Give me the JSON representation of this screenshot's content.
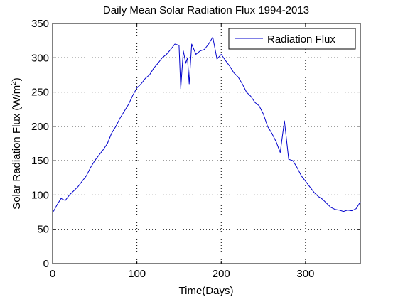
{
  "chart_data": {
    "type": "line",
    "title": "Daily Mean Solar Radiation Flux 1994-2013",
    "xlabel": "Time(Days)",
    "ylabel_main": "Solar Radiation Flux (W/m",
    "ylabel_sup": "2",
    "ylabel_close": ")",
    "xlim": [
      0,
      365
    ],
    "ylim": [
      0,
      350
    ],
    "xticks": [
      0,
      100,
      200,
      300
    ],
    "yticks": [
      0,
      50,
      100,
      150,
      200,
      250,
      300,
      350
    ],
    "grid": true,
    "legend_position": "top-right",
    "series": [
      {
        "name": "Radiation Flux",
        "color": "#0000cc",
        "x": [
          1,
          5,
          10,
          15,
          20,
          25,
          30,
          35,
          40,
          45,
          50,
          55,
          60,
          65,
          70,
          75,
          80,
          85,
          90,
          95,
          100,
          105,
          110,
          115,
          120,
          125,
          130,
          135,
          140,
          145,
          150,
          152,
          155,
          158,
          160,
          162,
          165,
          170,
          175,
          180,
          185,
          190,
          195,
          200,
          205,
          210,
          215,
          220,
          225,
          230,
          235,
          240,
          245,
          250,
          255,
          260,
          265,
          270,
          275,
          280,
          285,
          290,
          295,
          300,
          305,
          310,
          315,
          320,
          325,
          330,
          335,
          340,
          345,
          350,
          355,
          360,
          365
        ],
        "values": [
          76,
          85,
          95,
          92,
          100,
          106,
          112,
          120,
          128,
          140,
          150,
          158,
          166,
          175,
          190,
          200,
          212,
          222,
          232,
          245,
          256,
          262,
          270,
          275,
          285,
          292,
          300,
          305,
          312,
          320,
          318,
          255,
          310,
          292,
          300,
          262,
          320,
          305,
          310,
          312,
          320,
          330,
          298,
          305,
          296,
          288,
          278,
          272,
          262,
          250,
          244,
          235,
          230,
          218,
          200,
          190,
          178,
          162,
          208,
          152,
          150,
          140,
          128,
          120,
          112,
          104,
          98,
          94,
          88,
          82,
          79,
          78,
          76,
          78,
          77,
          80,
          90
        ]
      }
    ]
  }
}
